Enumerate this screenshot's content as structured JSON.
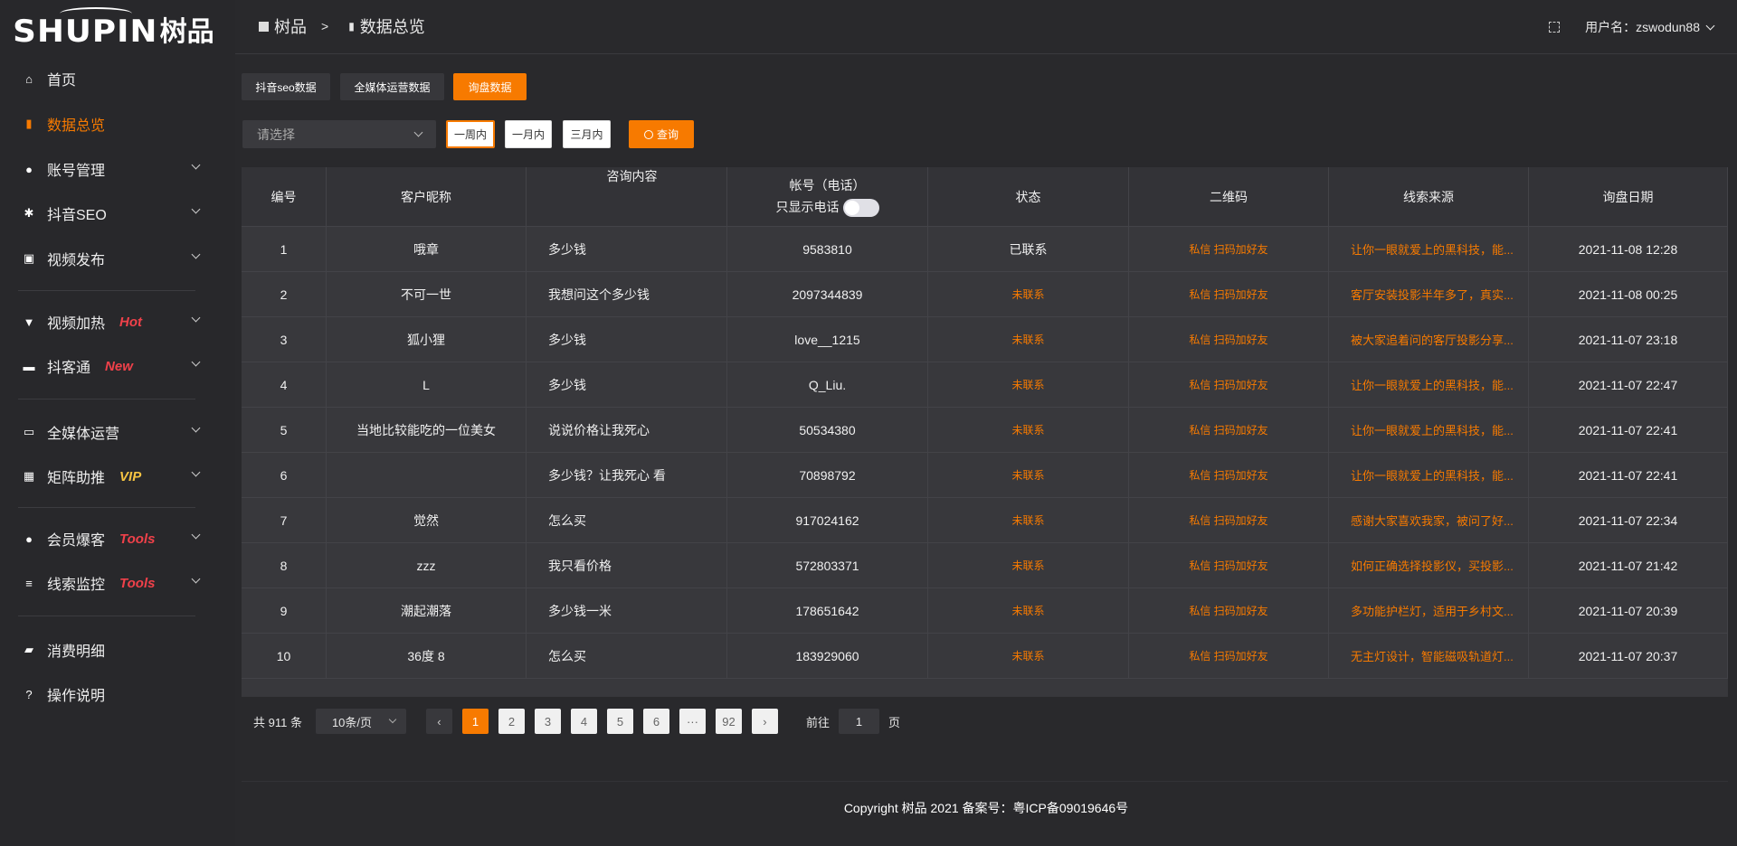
{
  "logo": {
    "en": "SHUPIN",
    "cn": "树品"
  },
  "header": {
    "breadcrumb_home": "树品",
    "breadcrumb_sep": ">",
    "breadcrumb_current": "数据总览",
    "user_label": "用户名：zswodun88"
  },
  "sidebar": {
    "items": [
      {
        "label": "首页",
        "icon": "home-icon"
      },
      {
        "label": "数据总览",
        "icon": "bar-chart-icon",
        "active": true
      },
      {
        "label": "账号管理",
        "icon": "user-icon"
      },
      {
        "label": "抖音SEO",
        "icon": "gear-icon"
      },
      {
        "label": "视频发布",
        "icon": "video-icon"
      },
      {
        "label": "视频加热",
        "icon": "brush-icon",
        "badge": "Hot"
      },
      {
        "label": "抖客通",
        "icon": "chat-icon",
        "badge": "New"
      },
      {
        "label": "全媒体运营",
        "icon": "monitor-icon"
      },
      {
        "label": "矩阵助推",
        "icon": "grid-icon",
        "badge": "VIP"
      },
      {
        "label": "会员爆客",
        "icon": "member-icon",
        "badge": "Tools"
      },
      {
        "label": "线索监控",
        "icon": "sliders-icon",
        "badge": "Tools"
      },
      {
        "label": "消费明细",
        "icon": "wallet-icon"
      },
      {
        "label": "操作说明",
        "icon": "help-icon"
      }
    ]
  },
  "tabs": [
    "抖音seo数据",
    "全媒体运营数据",
    "询盘数据"
  ],
  "filter": {
    "select_placeholder": "请选择",
    "ranges": [
      "一周内",
      "一月内",
      "三月内"
    ],
    "query_label": "查询"
  },
  "table": {
    "columns": [
      "编号",
      "客户昵称",
      "咨询内容",
      "帐号（电话）",
      "状态",
      "二维码",
      "线索来源",
      "询盘日期"
    ],
    "phone_only_label": "只显示电话",
    "rows": [
      [
        "1",
        "哦章",
        "多少钱",
        "9583810",
        "已联系",
        "私信 扫码加好友",
        "让你一眼就爱上的黑科技，能...",
        "2021-11-08 12:28"
      ],
      [
        "2",
        "不可一世",
        "我想问这个多少钱",
        "2097344839",
        "未联系",
        "私信 扫码加好友",
        "客厅安装投影半年多了，真实...",
        "2021-11-08 00:25"
      ],
      [
        "3",
        "狐小狸",
        "多少钱",
        "love__1215",
        "未联系",
        "私信 扫码加好友",
        "被大家追着问的客厅投影分享...",
        "2021-11-07 23:18"
      ],
      [
        "4",
        "L",
        "多少钱",
        "Q_Liu.",
        "未联系",
        "私信 扫码加好友",
        "让你一眼就爱上的黑科技，能...",
        "2021-11-07 22:47"
      ],
      [
        "5",
        "当地比较能吃的一位美女",
        "说说价格让我死心",
        "50534380",
        "未联系",
        "私信 扫码加好友",
        "让你一眼就爱上的黑科技，能...",
        "2021-11-07 22:41"
      ],
      [
        "6",
        "",
        "多少钱？让我死心 看",
        "70898792",
        "未联系",
        "私信 扫码加好友",
        "让你一眼就爱上的黑科技，能...",
        "2021-11-07 22:41"
      ],
      [
        "7",
        "觉然",
        "怎么买",
        "917024162",
        "未联系",
        "私信 扫码加好友",
        "感谢大家喜欢我家，被问了好...",
        "2021-11-07 22:34"
      ],
      [
        "8",
        "zzz",
        "我只看价格",
        "572803371",
        "未联系",
        "私信 扫码加好友",
        "如何正确选择投影仪，买投影...",
        "2021-11-07 21:42"
      ],
      [
        "9",
        "潮起潮落",
        "多少钱一米",
        "178651642",
        "未联系",
        "私信 扫码加好友",
        "多功能护栏灯，适用于乡村文...",
        "2021-11-07 20:39"
      ],
      [
        "10",
        "36度 8",
        "怎么买",
        "183929060",
        "未联系",
        "私信 扫码加好友",
        "无主灯设计，智能磁吸轨道灯...",
        "2021-11-07 20:37"
      ]
    ]
  },
  "pagination": {
    "total": "共 911 条",
    "page_size": "10条/页",
    "pages": [
      "1",
      "2",
      "3",
      "4",
      "5",
      "6",
      "···",
      "92"
    ],
    "current": "1",
    "goto_label": "前往",
    "goto_value": "1",
    "page_suffix": "页"
  },
  "footer": "Copyright 树品 2021 备案号：粤ICP备09019646号",
  "colors": {
    "accent": "#f77a00",
    "badge_red": "#f0414a",
    "badge_vip": "#f5c342"
  }
}
